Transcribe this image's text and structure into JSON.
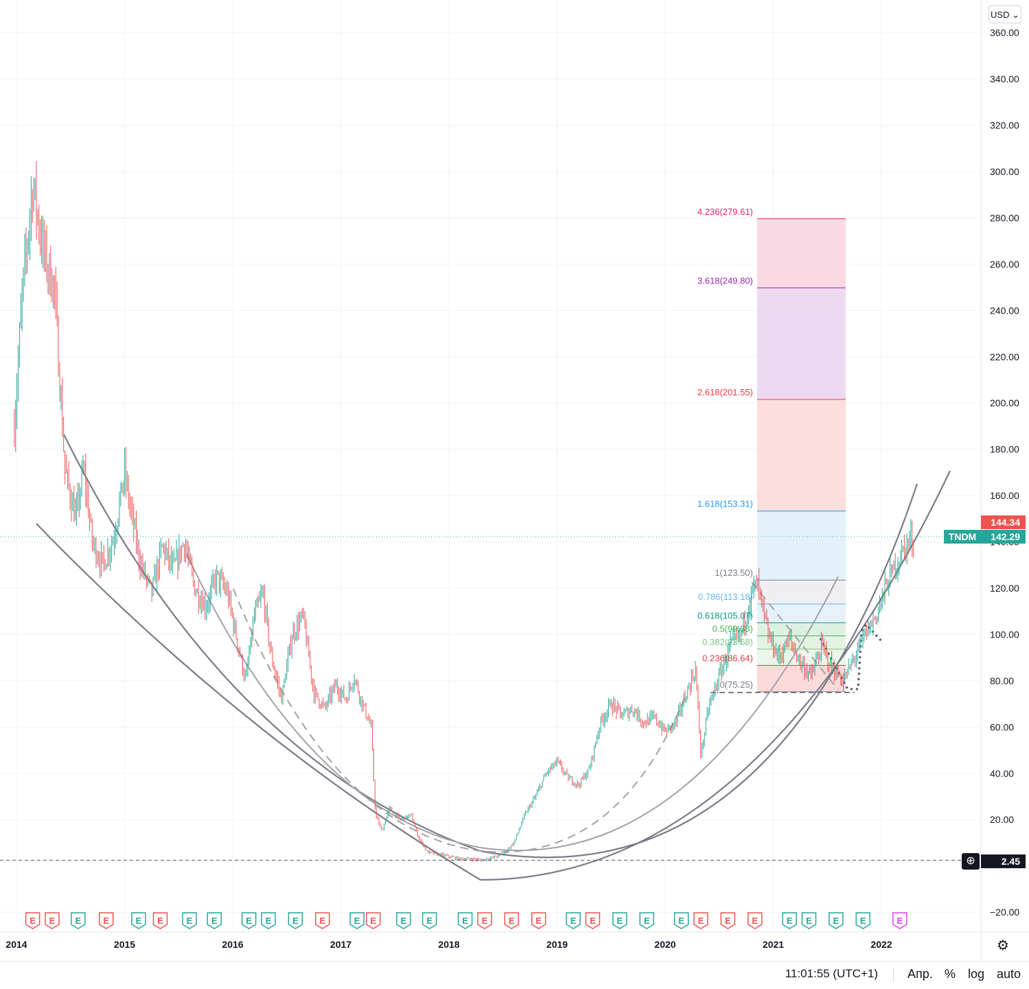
{
  "currency": "USD",
  "symbol_tag": "TNDM",
  "price_tags": {
    "last_red": "144.34",
    "last_green": "142.29",
    "crosshair": "2.45"
  },
  "bottom_bar": {
    "clock": "11:01:55 (UTC+1)",
    "adj": "Апр.",
    "percent": "%",
    "log": "log",
    "auto": "auto"
  },
  "colors": {
    "up": "#26a69a",
    "down": "#ef5350",
    "earnings_up": "#26a69a",
    "earnings_down": "#ef5350",
    "earnings_future": "#e040fb"
  },
  "chart_data": {
    "type": "candlestick",
    "title": "TNDM",
    "ylim": [
      -25,
      370
    ],
    "y_ticks": [
      -20,
      20,
      40,
      60,
      80,
      100,
      120,
      140,
      160,
      180,
      200,
      220,
      240,
      260,
      280,
      300,
      320,
      340,
      360
    ],
    "y_tick_labels": [
      "−20.00",
      "20.00",
      "40.00",
      "60.00",
      "80.00",
      "100.00",
      "120.00",
      "140.00",
      "160.00",
      "180.00",
      "200.00",
      "220.00",
      "240.00",
      "260.00",
      "280.00",
      "300.00",
      "320.00",
      "340.00",
      "360.00"
    ],
    "x_range": [
      2014.0,
      2023.1
    ],
    "x_ticks": [
      2014,
      2015,
      2016,
      2017,
      2018,
      2019,
      2020,
      2021,
      2022
    ],
    "x_tick_labels": [
      "2014",
      "2015",
      "2016",
      "2017",
      "2018",
      "2019",
      "2020",
      "2021",
      "2022"
    ],
    "price_path": [
      [
        2013.98,
        190
      ],
      [
        2014.05,
        245
      ],
      [
        2014.15,
        295
      ],
      [
        2014.25,
        265
      ],
      [
        2014.35,
        250
      ],
      [
        2014.4,
        210
      ],
      [
        2014.45,
        170
      ],
      [
        2014.55,
        150
      ],
      [
        2014.62,
        172
      ],
      [
        2014.7,
        140
      ],
      [
        2014.8,
        130
      ],
      [
        2014.9,
        142
      ],
      [
        2015.0,
        170
      ],
      [
        2015.05,
        155
      ],
      [
        2015.15,
        130
      ],
      [
        2015.25,
        118
      ],
      [
        2015.35,
        138
      ],
      [
        2015.45,
        128
      ],
      [
        2015.55,
        140
      ],
      [
        2015.65,
        120
      ],
      [
        2015.75,
        112
      ],
      [
        2015.85,
        125
      ],
      [
        2015.95,
        118
      ],
      [
        2016.05,
        95
      ],
      [
        2016.12,
        80
      ],
      [
        2016.2,
        108
      ],
      [
        2016.28,
        118
      ],
      [
        2016.35,
        92
      ],
      [
        2016.45,
        72
      ],
      [
        2016.55,
        100
      ],
      [
        2016.65,
        108
      ],
      [
        2016.75,
        75
      ],
      [
        2016.85,
        68
      ],
      [
        2016.95,
        78
      ],
      [
        2017.05,
        72
      ],
      [
        2017.12,
        82
      ],
      [
        2017.2,
        70
      ],
      [
        2017.28,
        60
      ],
      [
        2017.32,
        22
      ],
      [
        2017.38,
        15
      ],
      [
        2017.45,
        25
      ],
      [
        2017.55,
        20
      ],
      [
        2017.65,
        22
      ],
      [
        2017.72,
        12
      ],
      [
        2017.8,
        6
      ],
      [
        2017.9,
        5
      ],
      [
        2018.0,
        4
      ],
      [
        2018.1,
        3
      ],
      [
        2018.2,
        3
      ],
      [
        2018.3,
        2.5
      ],
      [
        2018.4,
        3.5
      ],
      [
        2018.5,
        5
      ],
      [
        2018.6,
        10
      ],
      [
        2018.7,
        22
      ],
      [
        2018.8,
        30
      ],
      [
        2018.9,
        40
      ],
      [
        2019.0,
        45
      ],
      [
        2019.1,
        38
      ],
      [
        2019.2,
        35
      ],
      [
        2019.3,
        42
      ],
      [
        2019.4,
        62
      ],
      [
        2019.5,
        70
      ],
      [
        2019.6,
        65
      ],
      [
        2019.7,
        68
      ],
      [
        2019.8,
        62
      ],
      [
        2019.9,
        64
      ],
      [
        2020.0,
        58
      ],
      [
        2020.1,
        62
      ],
      [
        2020.2,
        75
      ],
      [
        2020.28,
        85
      ],
      [
        2020.33,
        48
      ],
      [
        2020.4,
        68
      ],
      [
        2020.5,
        82
      ],
      [
        2020.6,
        95
      ],
      [
        2020.7,
        100
      ],
      [
        2020.8,
        118
      ],
      [
        2020.85,
        122
      ],
      [
        2020.95,
        100
      ],
      [
        2021.05,
        90
      ],
      [
        2021.15,
        98
      ],
      [
        2021.25,
        88
      ],
      [
        2021.35,
        82
      ],
      [
        2021.45,
        95
      ],
      [
        2021.55,
        85
      ],
      [
        2021.65,
        80
      ],
      [
        2021.75,
        90
      ],
      [
        2021.85,
        100
      ],
      [
        2021.95,
        108
      ],
      [
        2022.05,
        122
      ],
      [
        2022.15,
        132
      ],
      [
        2022.25,
        140
      ],
      [
        2022.3,
        142
      ]
    ],
    "fibonacci_extension": {
      "levels": [
        {
          "ratio": "0",
          "price": 75.25,
          "label": "0(75.25)",
          "color": "#787b86"
        },
        {
          "ratio": "0.236",
          "price": 86.64,
          "label": "0.236(86.64)",
          "color": "#f23645"
        },
        {
          "ratio": "0.382",
          "price": 93.68,
          "label": "0.382(93.68)",
          "color": "#81c784"
        },
        {
          "ratio": "0.5",
          "price": 99.38,
          "label": "0.5(99.38)",
          "color": "#4caf50"
        },
        {
          "ratio": "0.618",
          "price": 105.07,
          "label": "0.618(105.07)",
          "color": "#089981"
        },
        {
          "ratio": "0.786",
          "price": 113.18,
          "label": "0.786(113.18)",
          "color": "#64b5f6"
        },
        {
          "ratio": "1",
          "price": 123.5,
          "label": "1(123.50)",
          "color": "#787b86"
        },
        {
          "ratio": "1.618",
          "price": 153.31,
          "label": "1.618(153.31)",
          "color": "#2196f3"
        },
        {
          "ratio": "2.618",
          "price": 201.55,
          "label": "2.618(201.55)",
          "color": "#f23645"
        },
        {
          "ratio": "3.618",
          "price": 249.8,
          "label": "3.618(249.80)",
          "color": "#9c27b0"
        },
        {
          "ratio": "4.236",
          "price": 279.61,
          "label": "4.236(279.61)",
          "color": "#e91e63"
        }
      ],
      "x_start": 2020.85,
      "x_end": 2021.67
    },
    "earnings_markers": [
      {
        "x": 2014.15,
        "kind": "down"
      },
      {
        "x": 2014.33,
        "kind": "down"
      },
      {
        "x": 2014.57,
        "kind": "up"
      },
      {
        "x": 2014.83,
        "kind": "down"
      },
      {
        "x": 2015.13,
        "kind": "up"
      },
      {
        "x": 2015.33,
        "kind": "down"
      },
      {
        "x": 2015.6,
        "kind": "up"
      },
      {
        "x": 2015.83,
        "kind": "up"
      },
      {
        "x": 2016.15,
        "kind": "up"
      },
      {
        "x": 2016.33,
        "kind": "up"
      },
      {
        "x": 2016.58,
        "kind": "up"
      },
      {
        "x": 2016.83,
        "kind": "down"
      },
      {
        "x": 2017.15,
        "kind": "up"
      },
      {
        "x": 2017.3,
        "kind": "down"
      },
      {
        "x": 2017.58,
        "kind": "up"
      },
      {
        "x": 2017.82,
        "kind": "up"
      },
      {
        "x": 2018.15,
        "kind": "up"
      },
      {
        "x": 2018.33,
        "kind": "down"
      },
      {
        "x": 2018.58,
        "kind": "down"
      },
      {
        "x": 2018.83,
        "kind": "down"
      },
      {
        "x": 2019.15,
        "kind": "up"
      },
      {
        "x": 2019.33,
        "kind": "down"
      },
      {
        "x": 2019.58,
        "kind": "up"
      },
      {
        "x": 2019.83,
        "kind": "up"
      },
      {
        "x": 2020.15,
        "kind": "up"
      },
      {
        "x": 2020.33,
        "kind": "down"
      },
      {
        "x": 2020.58,
        "kind": "down"
      },
      {
        "x": 2020.83,
        "kind": "down"
      },
      {
        "x": 2021.15,
        "kind": "up"
      },
      {
        "x": 2021.33,
        "kind": "up"
      },
      {
        "x": 2021.58,
        "kind": "up"
      },
      {
        "x": 2021.83,
        "kind": "up"
      },
      {
        "x": 2022.17,
        "kind": "future"
      }
    ],
    "earnings_letter": "E",
    "last_price_line": 142.29,
    "crosshair_price": 2.45
  }
}
